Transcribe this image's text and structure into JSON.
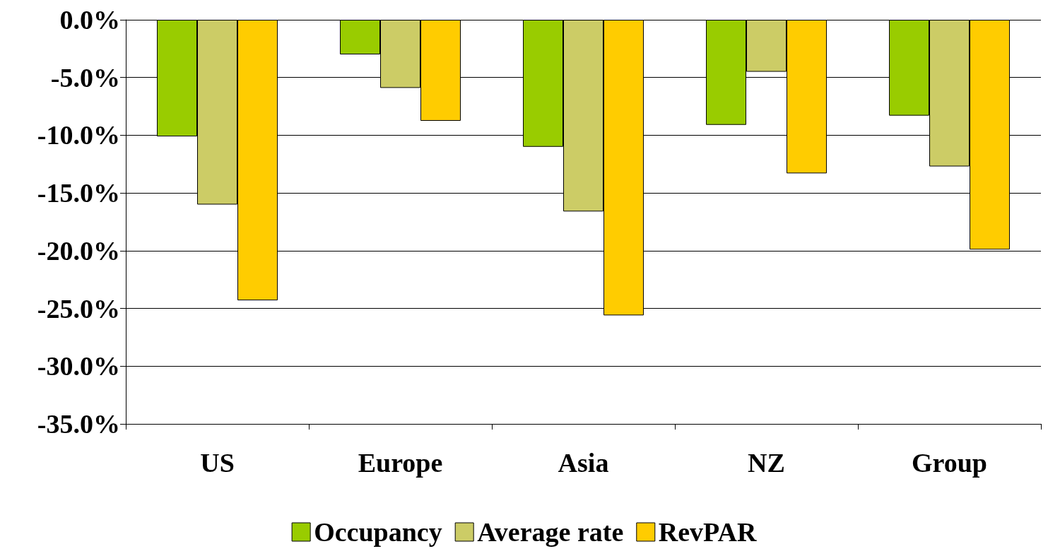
{
  "chart_data": {
    "type": "bar",
    "categories": [
      "US",
      "Europe",
      "Asia",
      "NZ",
      "Group"
    ],
    "series": [
      {
        "name": "Occupancy",
        "color": "#99cc00",
        "values": [
          -10.1,
          -3.0,
          -11.0,
          -9.1,
          -8.3
        ]
      },
      {
        "name": "Average rate",
        "color": "#cccc66",
        "values": [
          -16.0,
          -5.9,
          -16.6,
          -4.5,
          -12.7
        ]
      },
      {
        "name": "RevPAR",
        "color": "#ffcc00",
        "values": [
          -24.3,
          -8.75,
          -25.6,
          -13.3,
          -19.9
        ]
      }
    ],
    "ylim": [
      -35,
      0
    ],
    "yticks": [
      {
        "value": -35,
        "label": "-35.0%"
      },
      {
        "value": -30,
        "label": "-30.0%"
      },
      {
        "value": -25,
        "label": "-25.0%"
      },
      {
        "value": -20,
        "label": "-20.0%"
      },
      {
        "value": -15,
        "label": "-15.0%"
      },
      {
        "value": -10,
        "label": "-10.0%"
      },
      {
        "value": -5,
        "label": "-5.0%"
      },
      {
        "value": 0,
        "label": "0.0%"
      }
    ],
    "grid": "y",
    "legend": "bottom"
  }
}
